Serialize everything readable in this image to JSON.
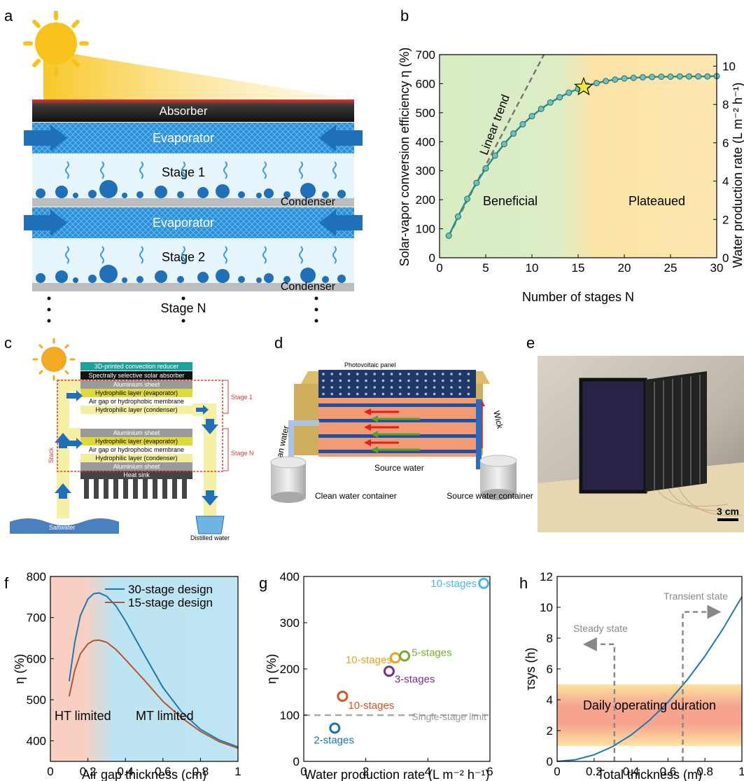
{
  "panel_labels": [
    "a",
    "b",
    "c",
    "d",
    "e",
    "f",
    "g",
    "h"
  ],
  "panel_a": {
    "absorber": "Absorber",
    "evaporator": "Evaporator",
    "stage1": "Stage 1",
    "stage2": "Stage 2",
    "stageN": "Stage N",
    "condenser": "Condenser"
  },
  "panel_c": {
    "convection_reducer": "3D-printed convection reducer",
    "solar_absorber": "Spectrally selective solar absorber",
    "aluminium": "Aluminium sheet",
    "evaporator_layer": "Hydrophilic layer (evaporator)",
    "air_gap": "Air gap or hydrophobic membrane",
    "condenser_layer": "Hydrophilic layer (condenser)",
    "heat_sink": "Heat sink",
    "stage1": "Stage 1",
    "stageN": "Stage N",
    "stack": "Stack",
    "saltwater": "Saltwater",
    "distilled": "Distilled water"
  },
  "panel_d": {
    "pv_panel": "Photovoltaic panel",
    "clean_water": "Clean water",
    "wick": "Wick",
    "source_water": "Source water",
    "clean_container": "Clean water container",
    "source_container": "Source water container"
  },
  "panel_e": {
    "scale": "3 cm"
  },
  "chart_data": [
    {
      "panel": "b",
      "type": "line",
      "xlabel": "Number of stages N",
      "ylabel": "Solar-vapor conversion efficiency η (%)",
      "y2label": "Water production rate (L m⁻² h⁻¹)",
      "xlim": [
        0,
        30
      ],
      "ylim": [
        0,
        700
      ],
      "y2lim": [
        0,
        10.6
      ],
      "xticks": [
        0,
        5,
        10,
        15,
        20,
        25,
        30
      ],
      "yticks": [
        0,
        100,
        200,
        300,
        400,
        500,
        600,
        700
      ],
      "y2ticks": [
        0,
        2,
        4,
        6,
        8,
        10
      ],
      "regions": [
        "Beneficial",
        "Plateaued"
      ],
      "annotation": "Linear trend",
      "x": [
        1,
        2,
        3,
        4,
        5,
        6,
        7,
        8,
        9,
        10,
        11,
        12,
        13,
        14,
        15,
        16,
        17,
        18,
        19,
        20,
        21,
        22,
        23,
        24,
        25,
        26,
        27,
        28,
        29,
        30
      ],
      "values": [
        76,
        142,
        203,
        258,
        308,
        352,
        392,
        428,
        460,
        488,
        513,
        535,
        553,
        569,
        582,
        593,
        602,
        609,
        614,
        618,
        620,
        622,
        623,
        624,
        624,
        625,
        625,
        625,
        625,
        626
      ],
      "optimum": {
        "x": 15.6,
        "y": 588
      },
      "trend": {
        "x": [
          1,
          11.3
        ],
        "y": [
          76,
          700
        ]
      }
    },
    {
      "panel": "f",
      "type": "line",
      "xlabel": "Air gap thickness (cm)",
      "ylabel": "η (%)",
      "xlim": [
        0,
        1
      ],
      "ylim": [
        350,
        800
      ],
      "xticks": [
        0,
        0.2,
        0.4,
        0.6,
        0.8,
        1
      ],
      "xticklabels": [
        "0",
        "0.2",
        "0.4",
        "0.6",
        "0.8",
        "1"
      ],
      "yticks": [
        400,
        500,
        600,
        700,
        800
      ],
      "regions": [
        "HT limited",
        "MT limited"
      ],
      "legend_position": "top-right",
      "series": [
        {
          "name": "30-stage design",
          "color": "#1f77b4",
          "x": [
            0.1,
            0.13,
            0.16,
            0.2,
            0.23,
            0.26,
            0.3,
            0.35,
            0.4,
            0.5,
            0.6,
            0.7,
            0.8,
            0.9,
            1.0
          ],
          "y": [
            545,
            640,
            705,
            745,
            758,
            760,
            752,
            728,
            692,
            610,
            530,
            470,
            428,
            402,
            385
          ]
        },
        {
          "name": "15-stage design",
          "color": "#b5572e",
          "x": [
            0.1,
            0.13,
            0.16,
            0.2,
            0.23,
            0.26,
            0.3,
            0.35,
            0.4,
            0.5,
            0.6,
            0.7,
            0.8,
            0.9,
            1.0
          ],
          "y": [
            508,
            572,
            612,
            636,
            644,
            645,
            640,
            622,
            598,
            548,
            496,
            456,
            423,
            398,
            382
          ]
        }
      ]
    },
    {
      "panel": "g",
      "type": "scatter",
      "xlabel": "Water production rate (L m⁻² h⁻¹)",
      "ylabel": "η (%)",
      "xlim": [
        0,
        6
      ],
      "ylim": [
        0,
        400
      ],
      "xticks": [
        0,
        2,
        4,
        6
      ],
      "yticks": [
        0,
        100,
        200,
        300,
        400
      ],
      "reference_line": {
        "y": 100,
        "label": "Single-stage limit"
      },
      "points": [
        {
          "label": "2-stages",
          "x": 1.0,
          "y": 72,
          "color": "#1f6fb2"
        },
        {
          "label": "10-stages",
          "x": 1.25,
          "y": 141,
          "color": "#d9541e"
        },
        {
          "label": "3-stages",
          "x": 2.75,
          "y": 195,
          "color": "#7b2d8e"
        },
        {
          "label": "10-stages",
          "x": 2.95,
          "y": 224,
          "color": "#e8a317"
        },
        {
          "label": "5-stages",
          "x": 3.25,
          "y": 228,
          "color": "#77ac30"
        },
        {
          "label": "10-stages",
          "x": 5.8,
          "y": 385,
          "color": "#4db8e8"
        }
      ]
    },
    {
      "panel": "h",
      "type": "line",
      "xlabel": "Total thickness (m)",
      "ylabel": "τsys (h)",
      "xlim": [
        0,
        1
      ],
      "ylim": [
        0,
        12
      ],
      "xticks": [
        0,
        0.2,
        0.4,
        0.6,
        0.8,
        1
      ],
      "xticklabels": [
        "0",
        "0.2",
        "0.4",
        "0.6",
        "0.8",
        "1"
      ],
      "yticks": [
        0,
        2,
        4,
        6,
        8,
        10,
        12
      ],
      "band": {
        "y": [
          1,
          5
        ],
        "label": "Daily operating duration"
      },
      "annotations": [
        "Steady state",
        "Transient state"
      ],
      "marker_x": [
        0.31,
        0.68
      ],
      "x": [
        0,
        0.1,
        0.2,
        0.3,
        0.4,
        0.5,
        0.6,
        0.7,
        0.8,
        0.9,
        1.0
      ],
      "y": [
        0,
        0.11,
        0.43,
        0.96,
        1.71,
        2.67,
        3.84,
        5.23,
        6.83,
        8.65,
        10.68
      ]
    }
  ]
}
